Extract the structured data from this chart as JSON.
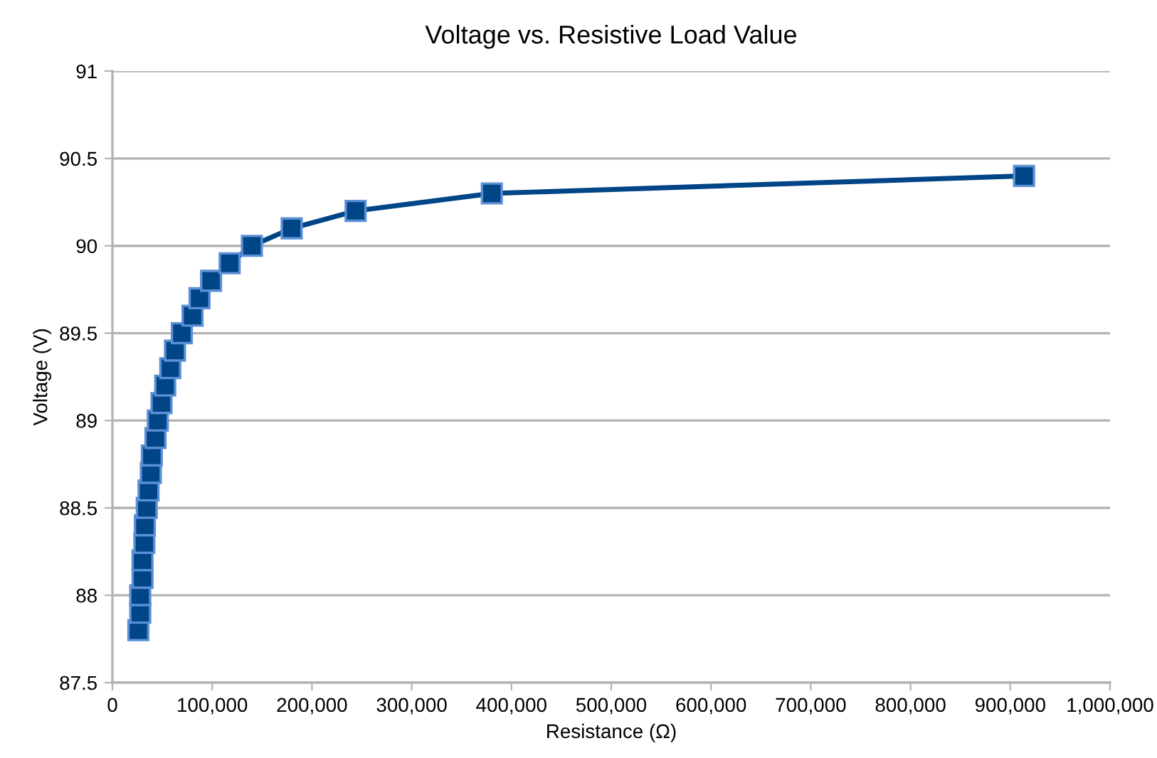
{
  "chart_data": {
    "type": "line",
    "title": "Voltage vs. Resistive Load Value",
    "xlabel": "Resistance (Ω)",
    "ylabel": "Voltage (V)",
    "series": [
      {
        "color": "#004586",
        "x": [
          26000,
          27900,
          27900,
          30200,
          30200,
          32000,
          32500,
          34400,
          36200,
          38500,
          39500,
          43200,
          45500,
          49200,
          52900,
          58000,
          62700,
          69600,
          80300,
          87300,
          98900,
          117500,
          139800,
          179700,
          243800,
          380300,
          913800
        ],
        "values": [
          87.8,
          87.9,
          88.0,
          88.1,
          88.2,
          88.3,
          88.4,
          88.5,
          88.6,
          88.7,
          88.8,
          88.9,
          89.0,
          89.1,
          89.2,
          89.3,
          89.4,
          89.5,
          89.6,
          89.7,
          89.8,
          89.9,
          90.0,
          90.1,
          90.2,
          90.3,
          90.4
        ]
      }
    ],
    "xlim": [
      0,
      1000000
    ],
    "xticks": [
      {
        "value": 0,
        "label": "0"
      },
      {
        "value": 100000,
        "label": "100,000"
      },
      {
        "value": 200000,
        "label": "200,000"
      },
      {
        "value": 300000,
        "label": "300,000"
      },
      {
        "value": 400000,
        "label": "400,000"
      },
      {
        "value": 500000,
        "label": "500,000"
      },
      {
        "value": 600000,
        "label": "600,000"
      },
      {
        "value": 700000,
        "label": "700,000"
      },
      {
        "value": 800000,
        "label": "800,000"
      },
      {
        "value": 900000,
        "label": "900,000"
      },
      {
        "value": 1000000,
        "label": "1,000,000"
      }
    ],
    "ylim": [
      87.5,
      91
    ],
    "yticks": [
      87.5,
      88,
      88.5,
      89,
      89.5,
      90,
      90.5,
      91
    ],
    "grid": "y",
    "legend": false,
    "marker": "square",
    "line_style": "solid"
  }
}
